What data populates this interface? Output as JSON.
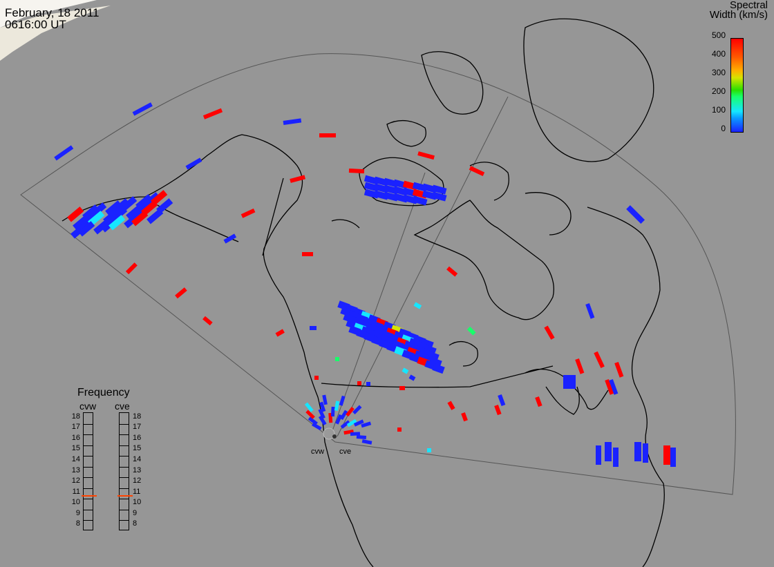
{
  "header": {
    "date": "February, 18 2011",
    "time": "0616:00 UT"
  },
  "colorbar": {
    "title_line1": "Spectral",
    "title_line2": "Width (km/s)",
    "ticks": [
      "500",
      "400",
      "300",
      "200",
      "100",
      "0"
    ],
    "range": [
      0,
      500
    ]
  },
  "frequency_panel": {
    "title": "Frequency",
    "radars": [
      {
        "name": "cvw",
        "frequency": 10.8
      },
      {
        "name": "cve",
        "frequency": 10.8
      }
    ],
    "scale": [
      "18",
      "17",
      "16",
      "15",
      "14",
      "13",
      "12",
      "11",
      "10",
      "9",
      "8"
    ],
    "min": 8,
    "max": 18
  },
  "sites": [
    {
      "label": "cvw"
    },
    {
      "label": "cve"
    }
  ],
  "colors": {
    "background": "#969696",
    "low_width": "#1a22ff",
    "high_width": "#ff0000",
    "coast": "#000000"
  }
}
